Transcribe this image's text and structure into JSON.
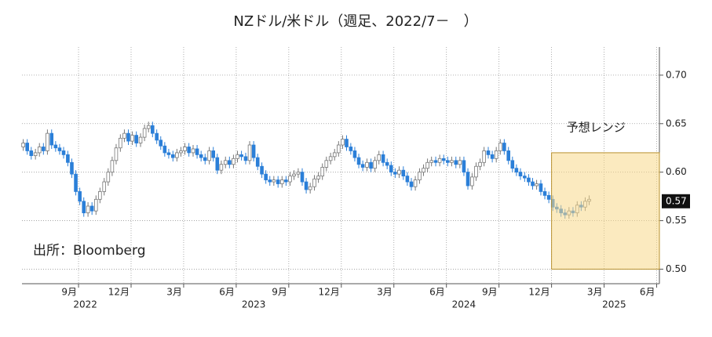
{
  "chart_data": {
    "type": "candlestick",
    "title": "NZドル/米ドル（週足、2022/7－　）",
    "x": [
      2022.404,
      2022.423,
      2022.442,
      2022.462,
      2022.481,
      2022.5,
      2022.519,
      2022.539,
      2022.558,
      2022.577,
      2022.596,
      2022.616,
      2022.635,
      2022.654,
      2022.673,
      2022.692,
      2022.712,
      2022.731,
      2022.75,
      2022.769,
      2022.789,
      2022.808,
      2022.827,
      2022.846,
      2022.866,
      2022.885,
      2022.904,
      2022.923,
      2022.942,
      2022.962,
      2022.981,
      2023.0,
      2023.019,
      2023.039,
      2023.058,
      2023.077,
      2023.096,
      2023.116,
      2023.135,
      2023.154,
      2023.173,
      2023.192,
      2023.212,
      2023.231,
      2023.25,
      2023.269,
      2023.289,
      2023.308,
      2023.327,
      2023.346,
      2023.366,
      2023.385,
      2023.404,
      2023.423,
      2023.442,
      2023.462,
      2023.481,
      2023.5,
      2023.519,
      2023.539,
      2023.558,
      2023.577,
      2023.596,
      2023.616,
      2023.635,
      2023.654,
      2023.673,
      2023.692,
      2023.712,
      2023.731,
      2023.75,
      2023.769,
      2023.789,
      2023.808,
      2023.827,
      2023.846,
      2023.866,
      2023.885,
      2023.904,
      2023.923,
      2023.942,
      2023.962,
      2023.981,
      2024.0,
      2024.019,
      2024.039,
      2024.058,
      2024.077,
      2024.096,
      2024.116,
      2024.135,
      2024.154,
      2024.173,
      2024.192,
      2024.212,
      2024.231,
      2024.25,
      2024.269,
      2024.289,
      2024.308,
      2024.327,
      2024.346,
      2024.366,
      2024.385,
      2024.404,
      2024.423,
      2024.442,
      2024.462,
      2024.481,
      2024.5,
      2024.519,
      2024.539,
      2024.558,
      2024.577,
      2024.596,
      2024.616,
      2024.635,
      2024.654,
      2024.673,
      2024.692,
      2024.712,
      2024.731,
      2024.75,
      2024.769,
      2024.789,
      2024.808,
      2024.827,
      2024.846,
      2024.866,
      2024.885,
      2024.904,
      2024.923,
      2024.942,
      2024.962,
      2024.981,
      2025.0,
      2025.019,
      2025.039,
      2025.058,
      2025.077,
      2025.096
    ],
    "open": [
      0.626,
      0.63,
      0.622,
      0.617,
      0.62,
      0.626,
      0.622,
      0.64,
      0.628,
      0.625,
      0.622,
      0.618,
      0.61,
      0.598,
      0.58,
      0.57,
      0.558,
      0.565,
      0.56,
      0.572,
      0.58,
      0.59,
      0.6,
      0.612,
      0.625,
      0.635,
      0.64,
      0.632,
      0.638,
      0.63,
      0.636,
      0.645,
      0.648,
      0.64,
      0.633,
      0.627,
      0.62,
      0.618,
      0.615,
      0.62,
      0.622,
      0.626,
      0.62,
      0.624,
      0.618,
      0.615,
      0.612,
      0.622,
      0.615,
      0.602,
      0.608,
      0.612,
      0.608,
      0.614,
      0.618,
      0.616,
      0.612,
      0.628,
      0.615,
      0.606,
      0.598,
      0.592,
      0.59,
      0.592,
      0.588,
      0.592,
      0.59,
      0.596,
      0.598,
      0.6,
      0.59,
      0.582,
      0.585,
      0.593,
      0.596,
      0.605,
      0.612,
      0.616,
      0.62,
      0.628,
      0.634,
      0.626,
      0.622,
      0.615,
      0.608,
      0.605,
      0.61,
      0.604,
      0.612,
      0.618,
      0.61,
      0.607,
      0.6,
      0.598,
      0.602,
      0.596,
      0.59,
      0.585,
      0.592,
      0.6,
      0.604,
      0.61,
      0.612,
      0.61,
      0.614,
      0.612,
      0.61,
      0.612,
      0.608,
      0.612,
      0.6,
      0.586,
      0.595,
      0.606,
      0.61,
      0.622,
      0.618,
      0.614,
      0.622,
      0.63,
      0.622,
      0.612,
      0.604,
      0.6,
      0.596,
      0.594,
      0.59,
      0.586,
      0.588,
      0.58,
      0.576,
      0.572,
      0.564,
      0.562,
      0.558,
      0.556,
      0.56,
      0.558,
      0.566,
      0.564,
      0.57
    ],
    "high": [
      0.634,
      0.634,
      0.626,
      0.624,
      0.63,
      0.63,
      0.644,
      0.644,
      0.632,
      0.629,
      0.626,
      0.622,
      0.614,
      0.602,
      0.584,
      0.574,
      0.569,
      0.569,
      0.576,
      0.584,
      0.594,
      0.604,
      0.616,
      0.629,
      0.639,
      0.644,
      0.644,
      0.642,
      0.642,
      0.64,
      0.649,
      0.652,
      0.652,
      0.644,
      0.637,
      0.631,
      0.624,
      0.622,
      0.624,
      0.626,
      0.63,
      0.63,
      0.628,
      0.628,
      0.622,
      0.619,
      0.626,
      0.626,
      0.619,
      0.612,
      0.616,
      0.616,
      0.618,
      0.622,
      0.622,
      0.62,
      0.632,
      0.632,
      0.619,
      0.61,
      0.602,
      0.596,
      0.596,
      0.596,
      0.596,
      0.596,
      0.6,
      0.602,
      0.604,
      0.604,
      0.594,
      0.589,
      0.597,
      0.6,
      0.609,
      0.616,
      0.62,
      0.624,
      0.632,
      0.638,
      0.638,
      0.63,
      0.626,
      0.619,
      0.612,
      0.614,
      0.614,
      0.616,
      0.622,
      0.622,
      0.614,
      0.611,
      0.604,
      0.606,
      0.606,
      0.6,
      0.594,
      0.596,
      0.604,
      0.608,
      0.614,
      0.616,
      0.616,
      0.618,
      0.618,
      0.616,
      0.616,
      0.616,
      0.616,
      0.616,
      0.604,
      0.599,
      0.61,
      0.614,
      0.626,
      0.626,
      0.622,
      0.626,
      0.634,
      0.634,
      0.626,
      0.616,
      0.608,
      0.604,
      0.6,
      0.598,
      0.594,
      0.592,
      0.592,
      0.584,
      0.58,
      0.576,
      0.568,
      0.566,
      0.562,
      0.564,
      0.564,
      0.57,
      0.57,
      0.574,
      0.576
    ],
    "low": [
      0.622,
      0.618,
      0.613,
      0.613,
      0.616,
      0.618,
      0.618,
      0.624,
      0.621,
      0.618,
      0.614,
      0.606,
      0.594,
      0.576,
      0.566,
      0.554,
      0.554,
      0.556,
      0.556,
      0.568,
      0.576,
      0.586,
      0.596,
      0.608,
      0.621,
      0.631,
      0.628,
      0.628,
      0.626,
      0.626,
      0.632,
      0.641,
      0.636,
      0.629,
      0.623,
      0.616,
      0.614,
      0.611,
      0.611,
      0.616,
      0.618,
      0.616,
      0.616,
      0.614,
      0.611,
      0.608,
      0.608,
      0.611,
      0.598,
      0.598,
      0.604,
      0.604,
      0.604,
      0.61,
      0.612,
      0.608,
      0.608,
      0.611,
      0.602,
      0.594,
      0.588,
      0.586,
      0.586,
      0.584,
      0.584,
      0.586,
      0.586,
      0.592,
      0.594,
      0.586,
      0.578,
      0.578,
      0.581,
      0.589,
      0.592,
      0.601,
      0.608,
      0.612,
      0.616,
      0.624,
      0.622,
      0.618,
      0.611,
      0.604,
      0.601,
      0.601,
      0.6,
      0.6,
      0.608,
      0.606,
      0.603,
      0.596,
      0.594,
      0.594,
      0.592,
      0.586,
      0.581,
      0.581,
      0.588,
      0.596,
      0.6,
      0.606,
      0.606,
      0.606,
      0.608,
      0.606,
      0.606,
      0.604,
      0.604,
      0.596,
      0.582,
      0.582,
      0.591,
      0.602,
      0.606,
      0.614,
      0.61,
      0.61,
      0.618,
      0.618,
      0.608,
      0.6,
      0.596,
      0.592,
      0.59,
      0.586,
      0.582,
      0.582,
      0.576,
      0.572,
      0.568,
      0.56,
      0.558,
      0.554,
      0.552,
      0.552,
      0.554,
      0.554,
      0.56,
      0.56,
      0.566
    ],
    "close": [
      0.63,
      0.622,
      0.617,
      0.62,
      0.626,
      0.622,
      0.64,
      0.628,
      0.625,
      0.622,
      0.618,
      0.61,
      0.598,
      0.58,
      0.57,
      0.558,
      0.565,
      0.56,
      0.572,
      0.58,
      0.59,
      0.6,
      0.612,
      0.625,
      0.635,
      0.64,
      0.632,
      0.638,
      0.63,
      0.636,
      0.645,
      0.648,
      0.64,
      0.633,
      0.627,
      0.62,
      0.618,
      0.615,
      0.62,
      0.622,
      0.626,
      0.62,
      0.624,
      0.618,
      0.615,
      0.612,
      0.622,
      0.615,
      0.602,
      0.608,
      0.612,
      0.608,
      0.614,
      0.618,
      0.616,
      0.612,
      0.628,
      0.615,
      0.606,
      0.598,
      0.592,
      0.59,
      0.592,
      0.588,
      0.592,
      0.59,
      0.596,
      0.598,
      0.6,
      0.59,
      0.582,
      0.585,
      0.593,
      0.596,
      0.605,
      0.612,
      0.616,
      0.62,
      0.628,
      0.634,
      0.626,
      0.622,
      0.615,
      0.608,
      0.605,
      0.61,
      0.604,
      0.612,
      0.618,
      0.61,
      0.607,
      0.6,
      0.598,
      0.602,
      0.596,
      0.59,
      0.585,
      0.592,
      0.6,
      0.604,
      0.61,
      0.612,
      0.61,
      0.614,
      0.612,
      0.61,
      0.612,
      0.608,
      0.612,
      0.6,
      0.586,
      0.595,
      0.606,
      0.61,
      0.622,
      0.618,
      0.614,
      0.622,
      0.63,
      0.622,
      0.612,
      0.604,
      0.6,
      0.596,
      0.594,
      0.59,
      0.586,
      0.588,
      0.58,
      0.576,
      0.572,
      0.564,
      0.562,
      0.558,
      0.556,
      0.56,
      0.558,
      0.566,
      0.564,
      0.57,
      0.572
    ],
    "up_color": "#ffffff",
    "down_color": "#2b7fd8",
    "xlim": [
      2022.398,
      2025.43
    ],
    "ylim": [
      0.485,
      0.729
    ],
    "yticks": [
      {
        "value": 0.5,
        "label": "0.50"
      },
      {
        "value": 0.55,
        "label": "0.55"
      },
      {
        "value": 0.6,
        "label": "0.60"
      },
      {
        "value": 0.65,
        "label": "0.65"
      },
      {
        "value": 0.7,
        "label": "0.70"
      }
    ],
    "xticks": [
      {
        "value": 2022.667,
        "label": "9月"
      },
      {
        "value": 2022.917,
        "label": "12月"
      },
      {
        "value": 2023.167,
        "label": "3月"
      },
      {
        "value": 2023.417,
        "label": "6月"
      },
      {
        "value": 2023.667,
        "label": "9月"
      },
      {
        "value": 2023.917,
        "label": "12月"
      },
      {
        "value": 2024.167,
        "label": "3月"
      },
      {
        "value": 2024.417,
        "label": "6月"
      },
      {
        "value": 2024.667,
        "label": "9月"
      },
      {
        "value": 2024.917,
        "label": "12月"
      },
      {
        "value": 2025.167,
        "label": "3月"
      },
      {
        "value": 2025.417,
        "label": "6月"
      }
    ],
    "year_labels": [
      2022,
      2023,
      2024,
      2025
    ],
    "grid": true,
    "forecast_range": {
      "start": 2024.917,
      "low": 0.5,
      "high": 0.62,
      "label": "予想レンジ",
      "color": "#f7d98a"
    },
    "last_label": {
      "value": 0.57,
      "label": "0.57"
    },
    "source": "出所：Bloomberg"
  }
}
